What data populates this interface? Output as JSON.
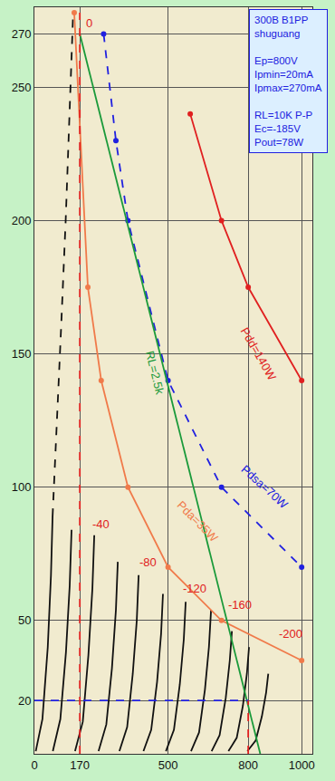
{
  "chart_data": {
    "type": "line",
    "xlim": [
      0,
      1040
    ],
    "ylim": [
      0,
      280
    ],
    "xticks": [
      0,
      170,
      500,
      800,
      1000
    ],
    "yticks": [
      20,
      50,
      100,
      150,
      200,
      250,
      270
    ],
    "grid": true,
    "series": [
      {
        "x": [
          5,
          30,
          50,
          62,
          68
        ],
        "values": [
          1,
          13,
          40,
          67,
          89
        ],
        "color": "#111111",
        "line_style": "solid",
        "marker": "none"
      },
      {
        "x": [
          68,
          85,
          100,
          117,
          132,
          145
        ],
        "values": [
          89,
          125,
          160,
          200,
          240,
          278
        ],
        "color": "#111111",
        "line_style": "dashed",
        "marker": "none"
      },
      {
        "x": [
          69,
          97,
          118,
          132,
          139
        ],
        "values": [
          1,
          13,
          38,
          63,
          84
        ],
        "color": "#111111",
        "line_style": "solid",
        "marker": "none"
      },
      {
        "x": [
          152,
          181,
          202,
          217,
          224
        ],
        "values": [
          1,
          12,
          37,
          62,
          82
        ],
        "color": "#111111",
        "line_style": "solid",
        "marker": "none"
      },
      {
        "x": [
          240,
          269,
          290,
          305,
          312
        ],
        "values": [
          1,
          11,
          32,
          54,
          72
        ],
        "color": "#111111",
        "line_style": "solid",
        "marker": "none"
      },
      {
        "x": [
          318,
          347,
          368,
          383,
          390
        ],
        "values": [
          1,
          10,
          30,
          50,
          67
        ],
        "color": "#111111",
        "line_style": "solid",
        "marker": "none"
      },
      {
        "x": [
          408,
          437,
          459,
          474,
          481
        ],
        "values": [
          1,
          9,
          27,
          45,
          60
        ],
        "color": "#111111",
        "line_style": "solid",
        "marker": "none"
      },
      {
        "x": [
          492,
          522,
          544,
          559,
          566
        ],
        "values": [
          1,
          9,
          26,
          43,
          57
        ],
        "color": "#111111",
        "line_style": "solid",
        "marker": "none"
      },
      {
        "x": [
          586,
          616,
          638,
          653,
          661
        ],
        "values": [
          1,
          8,
          24,
          40,
          54
        ],
        "color": "#111111",
        "line_style": "solid",
        "marker": "none"
      },
      {
        "x": [
          663,
          693,
          716,
          731,
          739
        ],
        "values": [
          1,
          7,
          21,
          35,
          46
        ],
        "color": "#111111",
        "line_style": "solid",
        "marker": "none"
      },
      {
        "x": [
          726,
          757,
          780,
          795,
          803
        ],
        "values": [
          1,
          6,
          18,
          30,
          40
        ],
        "color": "#111111",
        "line_style": "solid",
        "marker": "none"
      },
      {
        "x": [
          797,
          828,
          851,
          867,
          875
        ],
        "values": [
          1,
          5,
          14,
          23,
          30
        ],
        "color": "#111111",
        "line_style": "solid",
        "marker": "none"
      },
      {
        "x": [
          149,
          200,
          250,
          350,
          500,
          700,
          1000
        ],
        "values": [
          278,
          175,
          140,
          100,
          70,
          50,
          35
        ],
        "color": "#f07a4a",
        "line_style": "solid",
        "marker": "circle"
      },
      {
        "x": [
          259,
          305,
          350,
          500,
          700,
          1000
        ],
        "values": [
          270,
          230,
          200,
          140,
          100,
          70
        ],
        "color": "#2020e0",
        "line_style": "dashed",
        "marker": "circle"
      },
      {
        "x": [
          583,
          700,
          800,
          1000
        ],
        "values": [
          240,
          200,
          175,
          140
        ],
        "color": "#e02020",
        "line_style": "solid",
        "marker": "circle"
      },
      {
        "x": [
          170,
          845
        ],
        "values": [
          270,
          0
        ],
        "color": "#1a9a3a",
        "line_style": "solid",
        "marker": "none"
      },
      {
        "x": [
          170,
          170
        ],
        "values": [
          0,
          278
        ],
        "color": "#e02020",
        "line_style": "dashed",
        "marker": "none"
      },
      {
        "x": [
          0,
          800
        ],
        "values": [
          20,
          20
        ],
        "color": "#2020e0",
        "line_style": "dashed",
        "marker": "none"
      },
      {
        "x": [
          800,
          800
        ],
        "values": [
          0,
          20
        ],
        "color": "#e02020",
        "line_style": "dashed",
        "marker": "none"
      }
    ],
    "annotations": [
      {
        "text": "0",
        "x": 205,
        "y": 274,
        "color": "#e02020"
      },
      {
        "text": "-40",
        "x": 250,
        "y": 86,
        "color": "#e02020"
      },
      {
        "text": "-80",
        "x": 425,
        "y": 72,
        "color": "#e02020"
      },
      {
        "text": "-120",
        "x": 600,
        "y": 62,
        "color": "#e02020"
      },
      {
        "text": "-160",
        "x": 770,
        "y": 56,
        "color": "#e02020"
      },
      {
        "text": "-200",
        "x": 960,
        "y": 45,
        "color": "#e02020"
      },
      {
        "text": "RL=2.5k",
        "x": 452,
        "y": 143,
        "color": "#1a9a3a"
      },
      {
        "text": "Pda=35W",
        "x": 610,
        "y": 87,
        "color": "#f07a4a"
      },
      {
        "text": "Pdsa=70W",
        "x": 862,
        "y": 100,
        "color": "#2020e0"
      },
      {
        "text": "Pdd=140W",
        "x": 838,
        "y": 150,
        "color": "#e02020"
      }
    ],
    "info_box": [
      [
        "300B B1PP",
        "shuguang"
      ],
      [
        "Ep=800V",
        "Ipmin=20mA",
        "Ipmax=270mA"
      ],
      [
        "RL=10K P-P",
        "Ec=-185V",
        "Pout=78W"
      ]
    ],
    "info_box_color": "#2020e0"
  }
}
